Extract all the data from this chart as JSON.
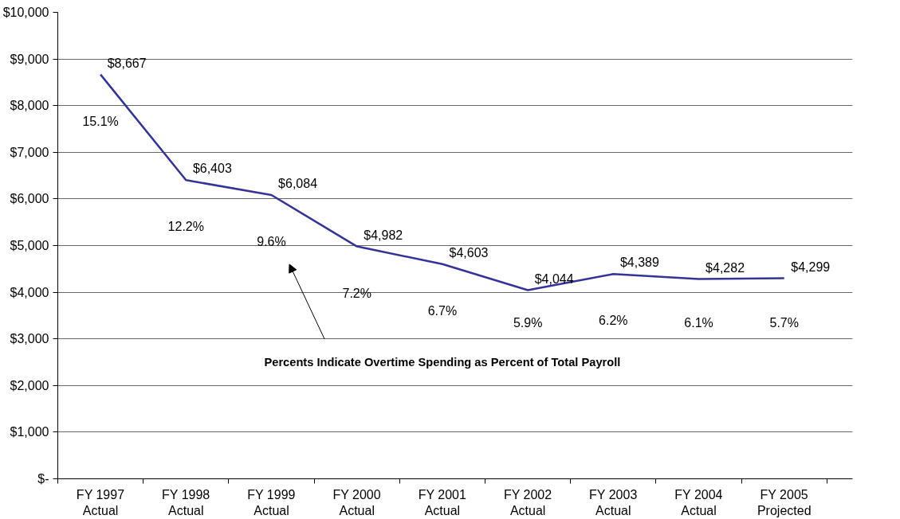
{
  "chart_data": {
    "type": "line",
    "categories": [
      "FY 1997\nActual",
      "FY 1998\nActual",
      "FY 1999\nActual",
      "FY 2000\nActual",
      "FY 2001\nActual",
      "FY 2002\nActual",
      "FY 2003\nActual",
      "FY 2004\nActual",
      "FY 2005\nProjected"
    ],
    "series": [
      {
        "color": "#333399",
        "values": [
          8667,
          6403,
          6084,
          4982,
          4603,
          4044,
          4389,
          4282,
          4299
        ],
        "value_labels": [
          "$8,667",
          "$6,403",
          "$6,084",
          "$4,982",
          "$4,603",
          "$4,044",
          "$4,389",
          "$4,282",
          "$4,299"
        ]
      }
    ],
    "ylim": [
      0,
      10000
    ],
    "yticks": [
      {
        "value": 0,
        "label": "$-"
      },
      {
        "value": 1000,
        "label": "$1,000"
      },
      {
        "value": 2000,
        "label": "$2,000"
      },
      {
        "value": 3000,
        "label": "$3,000"
      },
      {
        "value": 4000,
        "label": "$4,000"
      },
      {
        "value": 5000,
        "label": "$5,000"
      },
      {
        "value": 6000,
        "label": "$6,000"
      },
      {
        "value": 7000,
        "label": "$7,000"
      },
      {
        "value": 8000,
        "label": "$8,000"
      },
      {
        "value": 9000,
        "label": "$9,000"
      },
      {
        "value": 10000,
        "label": "$10,000"
      }
    ],
    "grid": "y",
    "marker": "none",
    "line_style": "solid",
    "annotations": [
      "15.1%",
      "12.2%",
      "9.6%",
      "7.2%",
      "6.7%",
      "5.9%",
      "6.2%",
      "6.1%",
      "5.7%",
      "Percents Indicate Overtime Spending as Percent of Total Payroll"
    ]
  }
}
